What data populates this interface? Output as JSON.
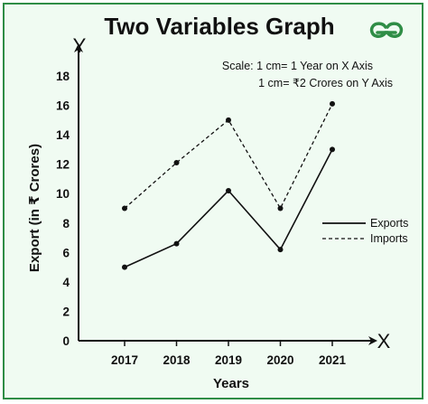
{
  "chart_data": {
    "type": "line",
    "title": "Two Variables Graph",
    "xlabel": "Years",
    "ylabel": "Export (in ₹ Crores)",
    "x_axis_letter": "X",
    "y_axis_letter": "Y",
    "categories": [
      "2017",
      "2018",
      "2019",
      "2020",
      "2021"
    ],
    "ylim": [
      0,
      18
    ],
    "yticks": [
      0,
      2,
      4,
      6,
      8,
      10,
      12,
      14,
      16,
      18
    ],
    "series": [
      {
        "name": "Exports",
        "style": "solid",
        "values": [
          5,
          6.6,
          10.2,
          6.2,
          13
        ]
      },
      {
        "name": "Imports",
        "style": "dashed",
        "values": [
          9,
          12.1,
          15,
          9,
          16.1
        ]
      }
    ],
    "scale_note": [
      "Scale: 1 cm= 1 Year on X Axis",
      "1 cm= ₹2 Crores on Y Axis"
    ],
    "legend_position": "right",
    "grid": false,
    "colors": {
      "frame": "#2f8d46",
      "background": "#f0fbf2",
      "lines": "#111111",
      "logo": "#2f8d46"
    },
    "logo_icon": "gfg-logo-icon"
  }
}
